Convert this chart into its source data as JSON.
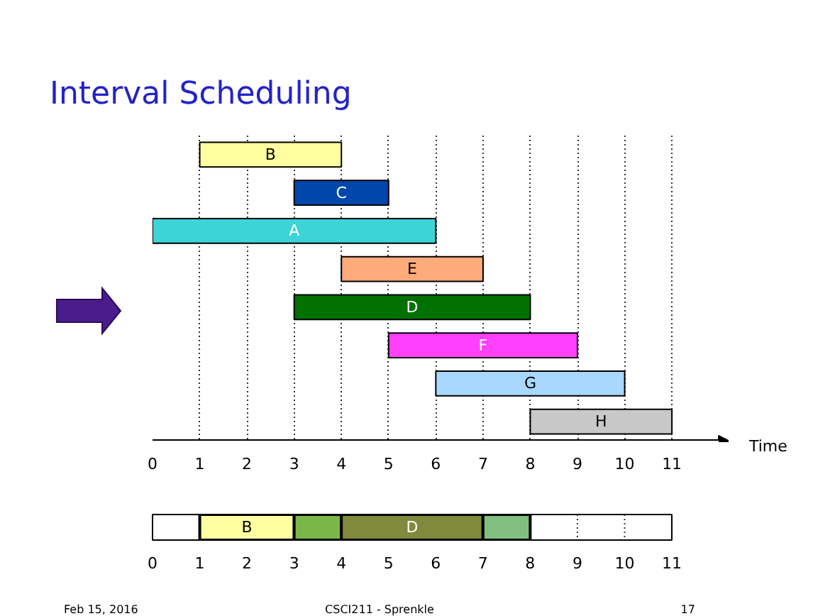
{
  "chart_data": [
    {
      "type": "bar",
      "title": "Interval Scheduling",
      "orientation": "horizontal",
      "xlabel": "Time",
      "categories": [
        "B",
        "C",
        "A",
        "E",
        "D",
        "F",
        "G",
        "H"
      ],
      "base": [
        1,
        3,
        0,
        4,
        3,
        5,
        6,
        8
      ],
      "values": [
        3,
        2,
        6,
        3,
        5,
        4,
        4,
        3
      ],
      "colors": [
        "#ffffa0",
        "#0047ab",
        "#3cd4d6",
        "#fdab7a",
        "#007000",
        "#ff40ff",
        "#a8d8ff",
        "#c8c8c8"
      ],
      "xlim": [
        0,
        12.2
      ],
      "xticks": [
        0,
        1,
        2,
        3,
        4,
        5,
        6,
        7,
        8,
        9,
        10,
        11
      ],
      "grid": "x"
    },
    {
      "type": "bar",
      "orientation": "horizontal",
      "categories": [
        null
      ],
      "series": [
        {
          "name": "B",
          "color": "#ffffa0",
          "base": [
            1
          ],
          "values": [
            2
          ]
        },
        {
          "color": "#7ab648",
          "base": [
            3
          ],
          "values": [
            1
          ]
        },
        {
          "name": "D",
          "color": "#808a3c",
          "base": [
            4
          ],
          "values": [
            3
          ]
        },
        {
          "color": "#80bf80",
          "base": [
            7
          ],
          "values": [
            1
          ]
        }
      ],
      "xlim": [
        0,
        11
      ],
      "xticks": [
        0,
        1,
        2,
        3,
        4,
        5,
        6,
        7,
        8,
        9,
        10,
        11
      ],
      "ref_lines": [
        {
          "axis": "x",
          "value": 9,
          "line_style": "dotted"
        },
        {
          "axis": "x",
          "value": 10,
          "line_style": "dotted"
        }
      ],
      "annotations": [
        "Feb 15, 2016",
        "CSCI211 - Sprenkle",
        "17"
      ]
    }
  ]
}
